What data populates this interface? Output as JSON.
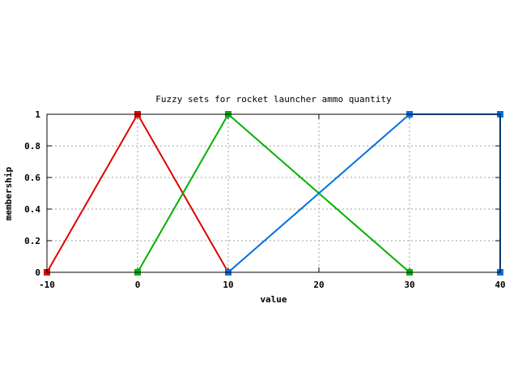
{
  "chart_data": {
    "type": "line",
    "title": "Fuzzy sets for rocket launcher ammo quantity",
    "xlabel": "value",
    "ylabel": "membership",
    "xlim": [
      -10,
      40
    ],
    "ylim": [
      0,
      1
    ],
    "x_ticks": [
      -10,
      0,
      10,
      20,
      30,
      40
    ],
    "y_ticks": [
      0,
      0.2,
      0.4,
      0.6,
      0.8,
      1
    ],
    "x_tick_labels": [
      "-10",
      "0",
      "10",
      "20",
      "30",
      "40"
    ],
    "y_tick_labels": [
      "0",
      "0.2",
      "0.4",
      "0.6",
      "0.8",
      "1"
    ],
    "grid": true,
    "legend": "none",
    "series": [
      {
        "color": "#e00000",
        "points": [
          [
            -10,
            0
          ],
          [
            0,
            1
          ],
          [
            10,
            0
          ]
        ]
      },
      {
        "color": "#00b000",
        "points": [
          [
            0,
            0
          ],
          [
            10,
            1
          ],
          [
            30,
            0
          ]
        ]
      },
      {
        "color": "#0070e0",
        "points": [
          [
            10,
            0
          ],
          [
            30,
            1
          ],
          [
            40,
            1
          ],
          [
            40,
            0
          ]
        ]
      }
    ]
  }
}
